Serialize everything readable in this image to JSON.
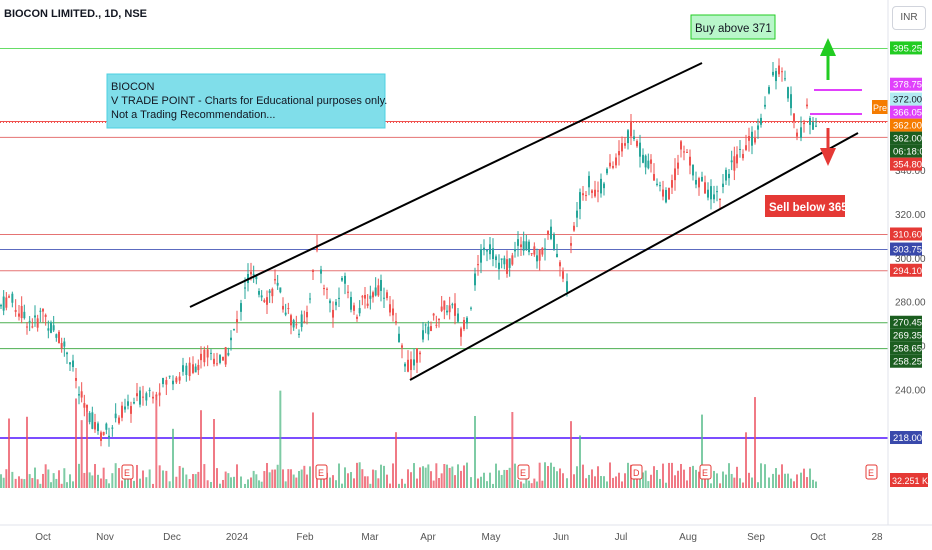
{
  "header": {
    "title": "BIOCON LIMITED., 1D, NSE"
  },
  "currency": "INR",
  "annotations": {
    "info_box": [
      "BIOCON",
      "V TRADE POINT - Charts for Educational purposes only.",
      "Not a Trading Recommendation..."
    ],
    "buy_label": "Buy above 371",
    "sell_label": "Sell below 365",
    "pre_tag": "Pre"
  },
  "colors": {
    "up": "#26a69a",
    "down": "#ef5350",
    "volume_up": "#53b987",
    "volume_down": "#eb4d5c",
    "accent_blue": "#2196f3"
  },
  "chart_data": {
    "type": "candlestick",
    "title": "BIOCON LIMITED., 1D, NSE",
    "ylim": [
      213,
      400
    ],
    "x_ticks": [
      "Oct",
      "Nov",
      "Dec",
      "2024",
      "Feb",
      "Mar",
      "Apr",
      "May",
      "Jun",
      "Jul",
      "Aug",
      "Sep",
      "Oct",
      "28"
    ],
    "y_ticks": [
      240,
      260,
      280,
      300,
      320,
      340
    ],
    "price_levels": [
      {
        "value": 395.25,
        "label": "395.25",
        "color": "#22cc22",
        "line": "#66dd66"
      },
      {
        "value": 378.75,
        "label": "378.75",
        "color": "#e040fb",
        "line": null
      },
      {
        "value": 372.0,
        "label": "372.00",
        "color": "#b2ebf2",
        "line": null,
        "text_color": "#131722"
      },
      {
        "value": 366.05,
        "label": "366.05",
        "color": "#e040fb",
        "line": null
      },
      {
        "value": 362.0,
        "label": "362.00",
        "color": "#f57c00",
        "line": null
      },
      {
        "value": 362.0,
        "label": "362.00",
        "color": "#1b5e20",
        "line": "#ef5350"
      },
      {
        "value": 359.0,
        "label": "06:18:01",
        "color": "#1b5e20",
        "line": null
      },
      {
        "value": 354.8,
        "label": "354.80",
        "color": "#e53935",
        "line": "#e57373"
      },
      {
        "value": 310.6,
        "label": "310.60",
        "color": "#e53935",
        "line": "#e57373"
      },
      {
        "value": 303.75,
        "label": "303.75",
        "color": "#3949ab",
        "line": "#5c6bc0"
      },
      {
        "value": 294.1,
        "label": "294.10",
        "color": "#e53935",
        "line": "#e57373"
      },
      {
        "value": 270.45,
        "label": "270.45",
        "color": "#1b5e20",
        "line": "#4caf50"
      },
      {
        "value": 269.35,
        "label": "269.35",
        "color": "#1b5e20",
        "line": null
      },
      {
        "value": 258.65,
        "label": "258.65",
        "color": "#1b5e20",
        "line": "#4caf50"
      },
      {
        "value": 258.25,
        "label": "258.25",
        "color": "#1b5e20",
        "line": null
      },
      {
        "value": 218.0,
        "label": "218.00",
        "color": "#3949ab",
        "line": "#7c4dff"
      }
    ],
    "volume_label": "32.251 K",
    "close_path": [
      [
        0,
        278
      ],
      [
        8,
        282
      ],
      [
        18,
        276
      ],
      [
        26,
        272
      ],
      [
        34,
        270
      ],
      [
        42,
        276
      ],
      [
        50,
        268
      ],
      [
        58,
        264
      ],
      [
        66,
        258
      ],
      [
        72,
        250
      ],
      [
        78,
        238
      ],
      [
        86,
        230
      ],
      [
        94,
        224
      ],
      [
        100,
        220
      ],
      [
        108,
        222
      ],
      [
        118,
        228
      ],
      [
        130,
        232
      ],
      [
        142,
        238
      ],
      [
        152,
        240
      ],
      [
        162,
        242
      ],
      [
        172,
        246
      ],
      [
        182,
        248
      ],
      [
        192,
        250
      ],
      [
        200,
        254
      ],
      [
        210,
        256
      ],
      [
        222,
        252
      ],
      [
        230,
        262
      ],
      [
        236,
        270
      ],
      [
        240,
        278
      ],
      [
        244,
        288
      ],
      [
        250,
        292
      ],
      [
        258,
        286
      ],
      [
        266,
        282
      ],
      [
        274,
        288
      ],
      [
        282,
        280
      ],
      [
        290,
        272
      ],
      [
        298,
        268
      ],
      [
        306,
        276
      ],
      [
        312,
        292
      ],
      [
        316,
        302
      ],
      [
        320,
        294
      ],
      [
        326,
        284
      ],
      [
        332,
        276
      ],
      [
        338,
        282
      ],
      [
        344,
        292
      ],
      [
        350,
        280
      ],
      [
        356,
        276
      ],
      [
        364,
        280
      ],
      [
        372,
        284
      ],
      [
        380,
        288
      ],
      [
        386,
        282
      ],
      [
        392,
        274
      ],
      [
        398,
        262
      ],
      [
        404,
        254
      ],
      [
        410,
        250
      ],
      [
        416,
        256
      ],
      [
        422,
        264
      ],
      [
        430,
        270
      ],
      [
        438,
        274
      ],
      [
        446,
        278
      ],
      [
        454,
        276
      ],
      [
        460,
        268
      ],
      [
        466,
        274
      ],
      [
        470,
        280
      ],
      [
        474,
        290
      ],
      [
        480,
        300
      ],
      [
        486,
        306
      ],
      [
        492,
        302
      ],
      [
        498,
        298
      ],
      [
        506,
        296
      ],
      [
        514,
        302
      ],
      [
        520,
        308
      ],
      [
        528,
        304
      ],
      [
        536,
        300
      ],
      [
        544,
        306
      ],
      [
        550,
        312
      ],
      [
        556,
        304
      ],
      [
        562,
        292
      ],
      [
        566,
        288
      ],
      [
        570,
        304
      ],
      [
        576,
        322
      ],
      [
        582,
        330
      ],
      [
        588,
        334
      ],
      [
        594,
        330
      ],
      [
        600,
        332
      ],
      [
        606,
        338
      ],
      [
        612,
        342
      ],
      [
        618,
        348
      ],
      [
        624,
        352
      ],
      [
        630,
        358
      ],
      [
        636,
        352
      ],
      [
        642,
        346
      ],
      [
        650,
        342
      ],
      [
        656,
        336
      ],
      [
        662,
        330
      ],
      [
        668,
        328
      ],
      [
        674,
        338
      ],
      [
        680,
        350
      ],
      [
        686,
        346
      ],
      [
        692,
        340
      ],
      [
        698,
        334
      ],
      [
        704,
        332
      ],
      [
        710,
        330
      ],
      [
        716,
        328
      ],
      [
        722,
        332
      ],
      [
        728,
        340
      ],
      [
        736,
        344
      ],
      [
        742,
        348
      ],
      [
        748,
        352
      ],
      [
        754,
        356
      ],
      [
        760,
        362
      ],
      [
        764,
        372
      ],
      [
        768,
        378
      ],
      [
        772,
        382
      ],
      [
        778,
        386
      ],
      [
        784,
        378
      ],
      [
        790,
        372
      ],
      [
        796,
        356
      ],
      [
        800,
        358
      ],
      [
        806,
        366
      ],
      [
        812,
        362
      ],
      [
        818,
        362
      ]
    ]
  }
}
